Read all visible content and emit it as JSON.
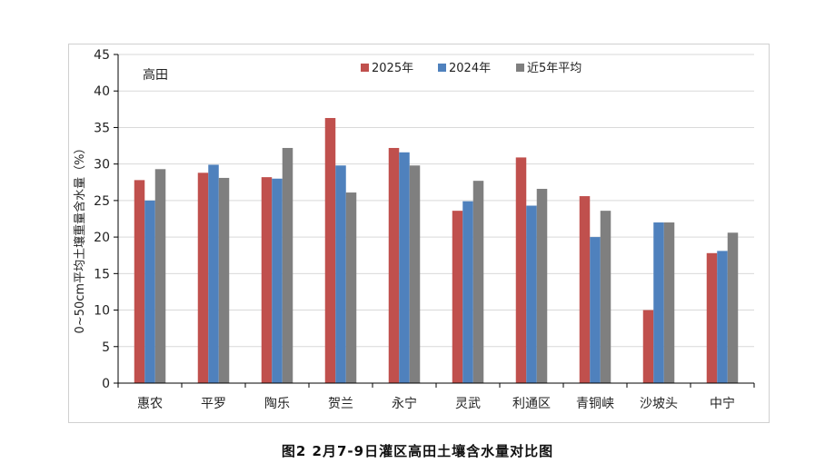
{
  "chart_data": {
    "type": "bar",
    "panel_label": "高田",
    "ylabel": "0~50cm平均土壤重量含水量（%）",
    "caption": "图2  2月7-9日灌区高田土壤含水量对比图",
    "ylim": [
      0,
      45
    ],
    "yticks": [
      0,
      5,
      10,
      15,
      20,
      25,
      30,
      35,
      40,
      45
    ],
    "legend_position": "top-center",
    "grid": true,
    "categories": [
      "惠农",
      "平罗",
      "陶乐",
      "贺兰",
      "永宁",
      "灵武",
      "利通区",
      "青铜峡",
      "沙坡头",
      "中宁"
    ],
    "series": [
      {
        "name": "2025年",
        "color": "#c0504d",
        "values": [
          27.8,
          28.8,
          28.2,
          36.3,
          32.2,
          23.6,
          30.9,
          25.6,
          10.0,
          17.8
        ]
      },
      {
        "name": "2024年",
        "color": "#4f81bd",
        "values": [
          25.0,
          29.9,
          28.0,
          29.8,
          31.6,
          24.9,
          24.3,
          20.0,
          22.0,
          18.1
        ]
      },
      {
        "name": "近5年平均",
        "color": "#7f7f7f",
        "values": [
          29.3,
          28.1,
          32.2,
          26.1,
          29.8,
          27.7,
          26.6,
          23.6,
          22.0,
          20.6
        ]
      }
    ]
  }
}
